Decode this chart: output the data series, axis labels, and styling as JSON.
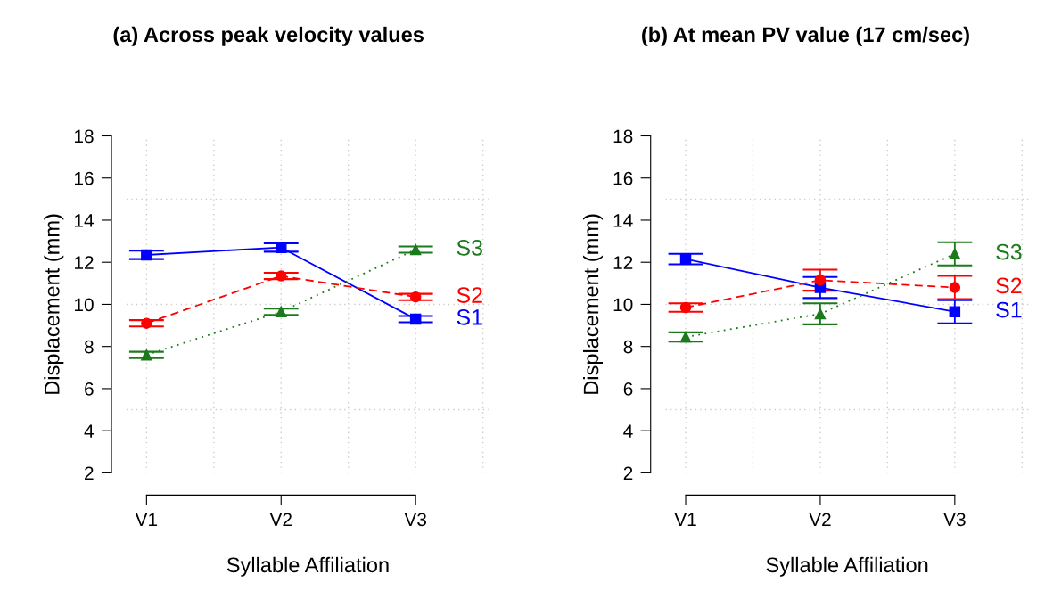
{
  "chart_data": [
    {
      "type": "line",
      "title": "(a) Across peak velocity values",
      "xlabel": "Syllable Affiliation",
      "ylabel": "Displacement (mm)",
      "categories": [
        "V1",
        "V2",
        "V3"
      ],
      "ylim": [
        2,
        18
      ],
      "yticks": [
        2,
        4,
        6,
        8,
        10,
        12,
        14,
        16,
        18
      ],
      "grid": "x",
      "legend": false,
      "ref_lines": [
        {
          "axis": "y",
          "value": 5,
          "color": "#cccccc",
          "line_style": "dotted"
        },
        {
          "axis": "y",
          "value": 10,
          "color": "#cccccc",
          "line_style": "dotted"
        },
        {
          "axis": "y",
          "value": 15,
          "color": "#cccccc",
          "line_style": "dotted"
        }
      ],
      "series": [
        {
          "name": "S1",
          "color": "#0000ff",
          "marker": "square",
          "line_style": "solid",
          "values": [
            12.35,
            12.7,
            9.3
          ],
          "errors": [
            0.2,
            0.2,
            0.15
          ]
        },
        {
          "name": "S2",
          "color": "#ff0000",
          "marker": "circle",
          "line_style": "dashed",
          "values": [
            9.1,
            11.35,
            10.35
          ],
          "errors": [
            0.15,
            0.15,
            0.15
          ]
        },
        {
          "name": "S3",
          "color": "#1b7a1b",
          "marker": "triangle",
          "line_style": "dotted",
          "values": [
            7.6,
            9.65,
            12.6
          ],
          "errors": [
            0.15,
            0.15,
            0.15
          ]
        }
      ]
    },
    {
      "type": "line",
      "title": "(b) At mean PV value (17 cm/sec)",
      "xlabel": "Syllable Affiliation",
      "ylabel": "Displacement (mm)",
      "categories": [
        "V1",
        "V2",
        "V3"
      ],
      "ylim": [
        2,
        18
      ],
      "yticks": [
        2,
        4,
        6,
        8,
        10,
        12,
        14,
        16,
        18
      ],
      "grid": "x",
      "legend": false,
      "ref_lines": [
        {
          "axis": "y",
          "value": 5,
          "color": "#cccccc",
          "line_style": "dotted"
        },
        {
          "axis": "y",
          "value": 10,
          "color": "#cccccc",
          "line_style": "dotted"
        },
        {
          "axis": "y",
          "value": 15,
          "color": "#cccccc",
          "line_style": "dotted"
        }
      ],
      "series": [
        {
          "name": "S1",
          "color": "#0000ff",
          "marker": "square",
          "line_style": "solid",
          "values": [
            12.15,
            10.8,
            9.65
          ],
          "errors": [
            0.25,
            0.5,
            0.55
          ]
        },
        {
          "name": "S2",
          "color": "#ff0000",
          "marker": "circle",
          "line_style": "dashed",
          "values": [
            9.85,
            11.15,
            10.8
          ],
          "errors": [
            0.2,
            0.5,
            0.55
          ]
        },
        {
          "name": "S3",
          "color": "#1b7a1b",
          "marker": "triangle",
          "line_style": "dotted",
          "values": [
            8.45,
            9.55,
            12.4
          ],
          "errors": [
            0.22,
            0.5,
            0.55
          ]
        }
      ]
    }
  ]
}
